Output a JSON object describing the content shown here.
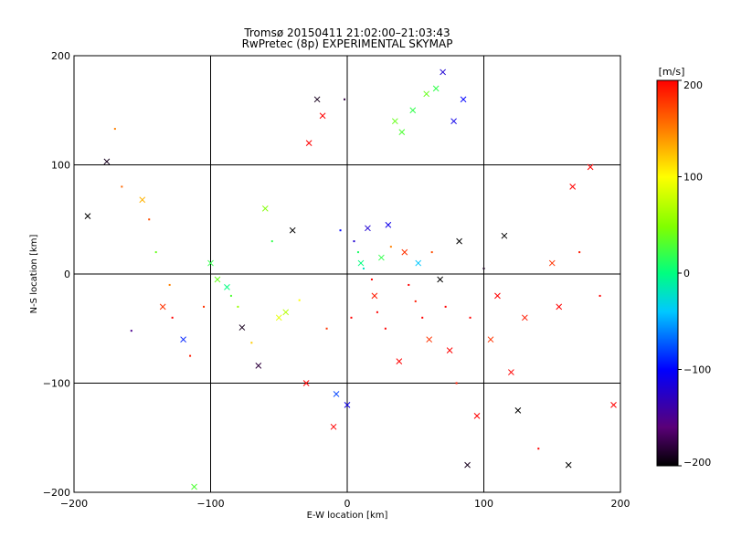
{
  "chart_data": {
    "type": "scatter",
    "title": "Tromsø 20150411 21:02:00–21:03:43",
    "subtitle": "RwPretec (8p) EXPERIMENTAL SKYMAP",
    "xlabel": "E-W location [km]",
    "ylabel": "N-S location [km]",
    "xlim": [
      -200,
      200
    ],
    "ylim": [
      -200,
      200
    ],
    "x_ticks": [
      -200,
      -100,
      0,
      100,
      200
    ],
    "y_ticks": [
      -200,
      -100,
      0,
      100,
      200
    ],
    "x_tick_labels": [
      "−200",
      "−100",
      "0",
      "100",
      "200"
    ],
    "y_tick_labels": [
      "−200",
      "−100",
      "0",
      "100",
      "200"
    ],
    "grid": true,
    "markers": [
      "dot",
      "x"
    ],
    "colorbar": {
      "label": "[m/s]",
      "range": [
        -200,
        200
      ],
      "ticks": [
        200,
        100,
        0,
        -100,
        -200
      ],
      "tick_labels": [
        "200",
        "100",
        "0",
        "−100",
        "−200"
      ],
      "colormap": "rainbow (black → purple → blue → cyan → green → yellow → orange → red)",
      "placement": "right"
    },
    "points": [
      [
        -190,
        53,
        -200,
        "x"
      ],
      [
        -176,
        103,
        -190,
        "x"
      ],
      [
        -170,
        133,
        150,
        "dot"
      ],
      [
        -165,
        80,
        160,
        "dot"
      ],
      [
        -158,
        -52,
        -150,
        "dot"
      ],
      [
        -150,
        68,
        130,
        "x"
      ],
      [
        -145,
        50,
        170,
        "dot"
      ],
      [
        -140,
        20,
        40,
        "dot"
      ],
      [
        -135,
        -30,
        180,
        "x"
      ],
      [
        -130,
        -10,
        150,
        "dot"
      ],
      [
        -128,
        -40,
        200,
        "dot"
      ],
      [
        -120,
        -60,
        -90,
        "x"
      ],
      [
        -115,
        -75,
        190,
        "dot"
      ],
      [
        -112,
        -195,
        30,
        "x"
      ],
      [
        -105,
        -30,
        180,
        "dot"
      ],
      [
        -100,
        10,
        20,
        "x"
      ],
      [
        -95,
        -5,
        40,
        "x"
      ],
      [
        -88,
        -12,
        0,
        "x"
      ],
      [
        -85,
        -20,
        30,
        "dot"
      ],
      [
        -80,
        -30,
        60,
        "dot"
      ],
      [
        -77,
        -49,
        -190,
        "x"
      ],
      [
        -70,
        -63,
        120,
        "dot"
      ],
      [
        -65,
        -84,
        -180,
        "x"
      ],
      [
        -60,
        60,
        50,
        "x"
      ],
      [
        -55,
        30,
        20,
        "dot"
      ],
      [
        -50,
        -40,
        90,
        "x"
      ],
      [
        -45,
        -35,
        70,
        "x"
      ],
      [
        -40,
        40,
        -200,
        "x"
      ],
      [
        -35,
        -24,
        100,
        "dot"
      ],
      [
        -30,
        -100,
        200,
        "x"
      ],
      [
        -28,
        120,
        200,
        "x"
      ],
      [
        -22,
        160,
        -190,
        "x"
      ],
      [
        -18,
        145,
        200,
        "x"
      ],
      [
        -15,
        -50,
        180,
        "dot"
      ],
      [
        -10,
        -140,
        200,
        "x"
      ],
      [
        -8,
        -110,
        -80,
        "x"
      ],
      [
        -5,
        40,
        -100,
        "dot"
      ],
      [
        -2,
        160,
        -180,
        "dot"
      ],
      [
        0,
        -120,
        -110,
        "x"
      ],
      [
        3,
        -40,
        200,
        "dot"
      ],
      [
        5,
        30,
        -120,
        "dot"
      ],
      [
        8,
        20,
        10,
        "dot"
      ],
      [
        10,
        10,
        0,
        "x"
      ],
      [
        12,
        5,
        -20,
        "dot"
      ],
      [
        15,
        42,
        -120,
        "x"
      ],
      [
        18,
        -5,
        200,
        "dot"
      ],
      [
        20,
        -20,
        190,
        "x"
      ],
      [
        22,
        -35,
        200,
        "dot"
      ],
      [
        25,
        15,
        20,
        "x"
      ],
      [
        28,
        -50,
        200,
        "dot"
      ],
      [
        30,
        45,
        -110,
        "x"
      ],
      [
        32,
        25,
        150,
        "dot"
      ],
      [
        35,
        140,
        40,
        "x"
      ],
      [
        38,
        -80,
        200,
        "x"
      ],
      [
        40,
        130,
        30,
        "x"
      ],
      [
        42,
        20,
        180,
        "x"
      ],
      [
        45,
        -10,
        200,
        "dot"
      ],
      [
        48,
        150,
        20,
        "x"
      ],
      [
        50,
        -25,
        190,
        "dot"
      ],
      [
        52,
        10,
        -40,
        "x"
      ],
      [
        55,
        -40,
        200,
        "dot"
      ],
      [
        58,
        165,
        40,
        "x"
      ],
      [
        60,
        -60,
        180,
        "x"
      ],
      [
        62,
        20,
        170,
        "dot"
      ],
      [
        65,
        170,
        20,
        "x"
      ],
      [
        68,
        -5,
        -200,
        "x"
      ],
      [
        70,
        185,
        -120,
        "x"
      ],
      [
        72,
        -30,
        200,
        "dot"
      ],
      [
        75,
        -70,
        200,
        "x"
      ],
      [
        78,
        140,
        -110,
        "x"
      ],
      [
        80,
        -100,
        190,
        "dot"
      ],
      [
        82,
        30,
        -200,
        "x"
      ],
      [
        85,
        160,
        -100,
        "x"
      ],
      [
        88,
        -175,
        -190,
        "x"
      ],
      [
        90,
        -40,
        200,
        "dot"
      ],
      [
        95,
        -130,
        200,
        "x"
      ],
      [
        100,
        5,
        -190,
        "dot"
      ],
      [
        105,
        -60,
        180,
        "x"
      ],
      [
        110,
        -20,
        200,
        "x"
      ],
      [
        115,
        35,
        -200,
        "x"
      ],
      [
        120,
        -90,
        200,
        "x"
      ],
      [
        125,
        -125,
        -200,
        "x"
      ],
      [
        130,
        -40,
        190,
        "x"
      ],
      [
        140,
        -160,
        200,
        "dot"
      ],
      [
        150,
        10,
        180,
        "x"
      ],
      [
        155,
        -30,
        200,
        "x"
      ],
      [
        162,
        -175,
        -200,
        "x"
      ],
      [
        165,
        80,
        200,
        "x"
      ],
      [
        170,
        20,
        190,
        "dot"
      ],
      [
        178,
        98,
        200,
        "x"
      ],
      [
        185,
        -20,
        200,
        "dot"
      ],
      [
        195,
        -120,
        200,
        "x"
      ]
    ]
  }
}
